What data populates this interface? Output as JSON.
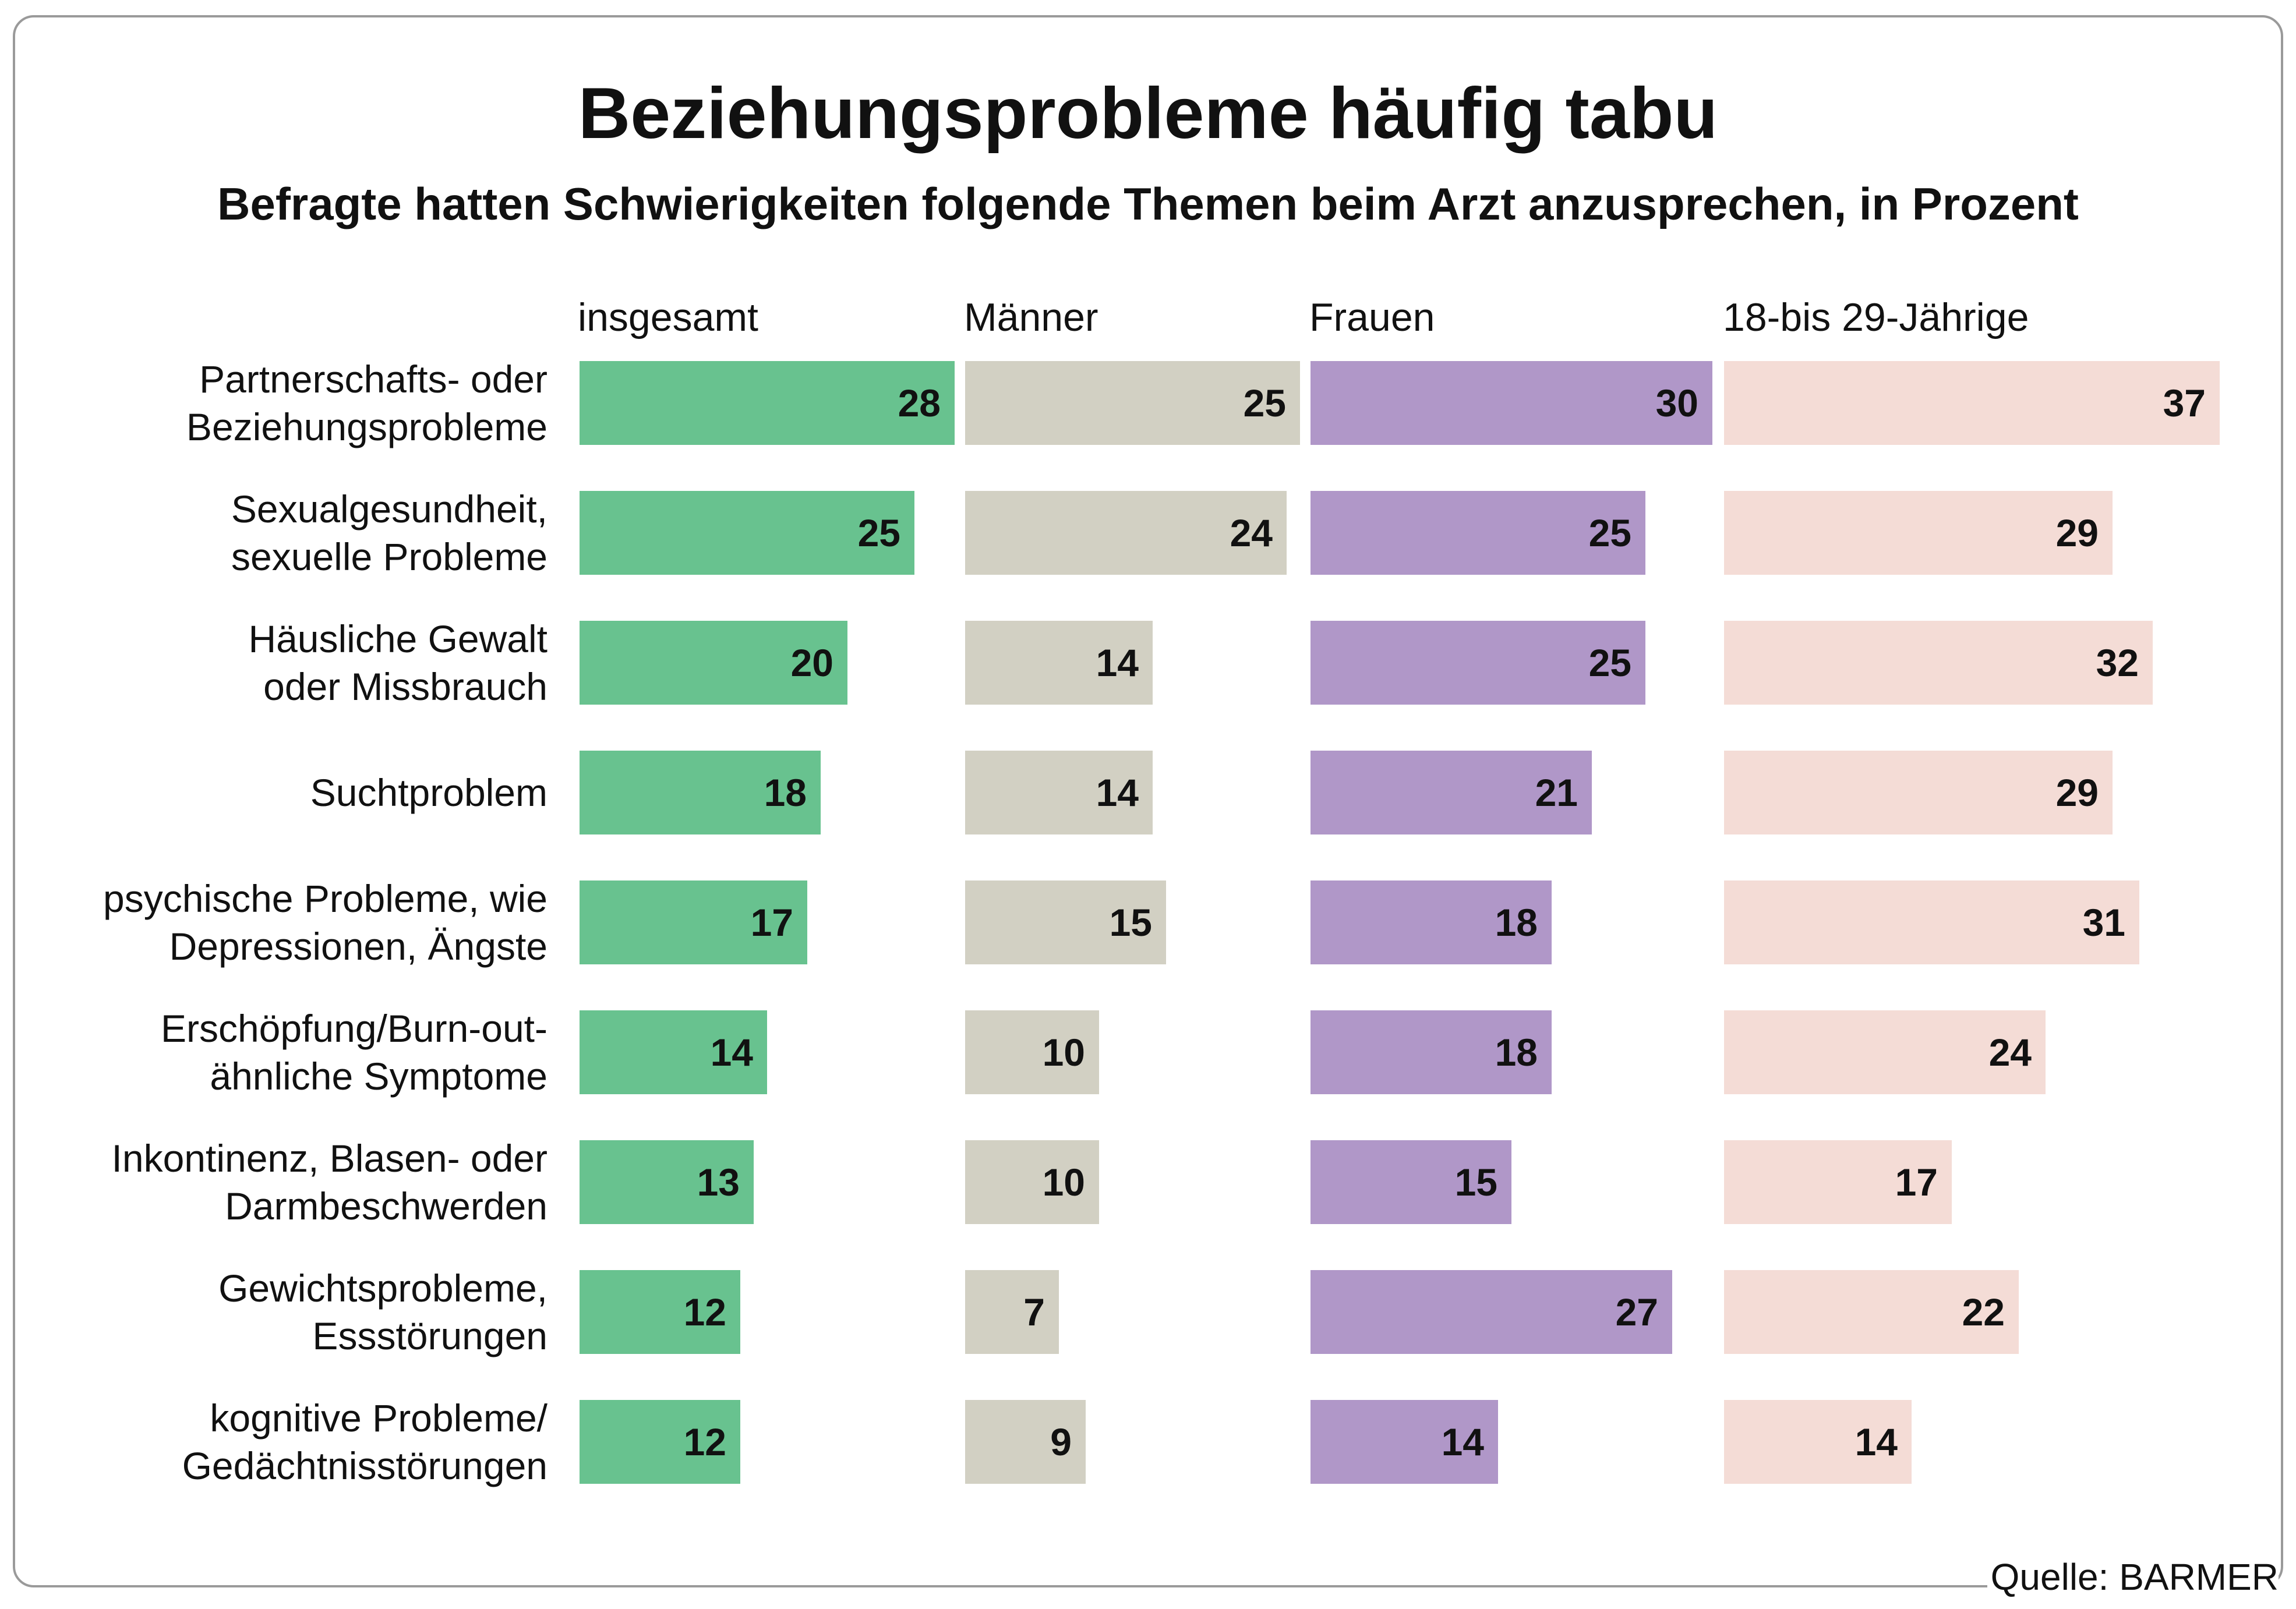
{
  "title": "Beziehungsprobleme häufig tabu",
  "subtitle": "Befragte hatten Schwierigkeiten folgende Themen beim Arzt anzusprechen, in Prozent",
  "source": "Quelle: BARMER",
  "colors": {
    "insgesamt": "#68c28f",
    "maenner": "#d2d0c3",
    "frauen": "#b097c8",
    "jung": "#f4dcd6"
  },
  "chart_data": {
    "type": "bar",
    "orientation": "horizontal",
    "title": "Beziehungsprobleme häufig tabu",
    "subtitle": "Befragte hatten Schwierigkeiten folgende Themen beim Arzt anzusprechen, in Prozent",
    "categories": [
      [
        "Partnerschafts- oder",
        "Beziehungsprobleme"
      ],
      [
        "Sexualgesundheit,",
        "sexuelle Probleme"
      ],
      [
        "Häusliche Gewalt",
        "oder Missbrauch"
      ],
      [
        "Suchtproblem"
      ],
      [
        "psychische Probleme, wie",
        "Depressionen, Ängste"
      ],
      [
        "Erschöpfung/Burn-out-",
        "ähnliche Symptome"
      ],
      [
        "Inkontinenz, Blasen- oder",
        "Darmbeschwerden"
      ],
      [
        "Gewichtsprobleme,",
        "Essstörungen"
      ],
      [
        "kognitive Probleme/",
        "Gedächtnisstörungen"
      ]
    ],
    "series": [
      {
        "name": "insgesamt",
        "values": [
          28,
          25,
          20,
          18,
          17,
          14,
          13,
          12,
          12
        ]
      },
      {
        "name": "Männer",
        "values": [
          25,
          24,
          14,
          14,
          15,
          10,
          10,
          7,
          9
        ]
      },
      {
        "name": "Frauen",
        "values": [
          30,
          25,
          25,
          21,
          18,
          18,
          15,
          27,
          14
        ]
      },
      {
        "name": "18-bis 29-Jährige",
        "values": [
          37,
          29,
          32,
          29,
          31,
          24,
          17,
          22,
          14
        ]
      }
    ],
    "data_labels": true,
    "grid": false
  }
}
